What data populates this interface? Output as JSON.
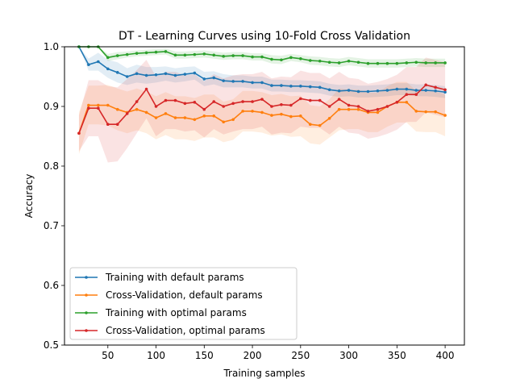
{
  "chart_data": {
    "type": "line",
    "title": "DT - Learning Curves using 10-Fold Cross Validation",
    "xlabel": "Training samples",
    "ylabel": "Accuracy",
    "xlim": [
      5,
      420
    ],
    "ylim": [
      0.5,
      1.0
    ],
    "xticks": [
      50,
      100,
      150,
      200,
      250,
      300,
      350,
      400
    ],
    "yticks": [
      0.5,
      0.6,
      0.7,
      0.8,
      0.9,
      1.0
    ],
    "grid": false,
    "legend_position": "lower-left",
    "x": [
      20,
      30,
      40,
      50,
      60,
      70,
      80,
      90,
      100,
      110,
      120,
      130,
      140,
      150,
      160,
      170,
      180,
      190,
      200,
      210,
      220,
      230,
      240,
      250,
      260,
      270,
      280,
      290,
      300,
      310,
      320,
      330,
      340,
      350,
      360,
      370,
      380,
      390,
      400
    ],
    "series": [
      {
        "name": "Training with default params",
        "color": "#1f77b4",
        "values": [
          1.0,
          0.97,
          0.975,
          0.963,
          0.957,
          0.95,
          0.955,
          0.952,
          0.953,
          0.955,
          0.952,
          0.954,
          0.956,
          0.946,
          0.948,
          0.943,
          0.942,
          0.942,
          0.94,
          0.94,
          0.935,
          0.935,
          0.934,
          0.934,
          0.933,
          0.932,
          0.928,
          0.926,
          0.927,
          0.925,
          0.925,
          0.926,
          0.927,
          0.929,
          0.929,
          0.927,
          0.927,
          0.926,
          0.924
        ],
        "band_low": [
          1.0,
          0.96,
          0.96,
          0.948,
          0.94,
          0.936,
          0.94,
          0.938,
          0.94,
          0.943,
          0.94,
          0.942,
          0.945,
          0.934,
          0.937,
          0.932,
          0.932,
          0.932,
          0.93,
          0.93,
          0.925,
          0.925,
          0.924,
          0.924,
          0.923,
          0.922,
          0.918,
          0.916,
          0.917,
          0.915,
          0.915,
          0.916,
          0.917,
          0.919,
          0.919,
          0.917,
          0.917,
          0.916,
          0.914
        ],
        "band_high": [
          1.0,
          0.98,
          0.99,
          0.978,
          0.974,
          0.964,
          0.97,
          0.966,
          0.966,
          0.967,
          0.964,
          0.966,
          0.967,
          0.958,
          0.959,
          0.954,
          0.952,
          0.952,
          0.95,
          0.95,
          0.945,
          0.945,
          0.944,
          0.944,
          0.943,
          0.942,
          0.938,
          0.936,
          0.937,
          0.935,
          0.935,
          0.936,
          0.937,
          0.939,
          0.939,
          0.937,
          0.937,
          0.936,
          0.934
        ]
      },
      {
        "name": "Cross-Validation, default params",
        "color": "#ff7f0e",
        "values": [
          0.855,
          0.902,
          0.902,
          0.902,
          0.895,
          0.89,
          0.895,
          0.89,
          0.881,
          0.888,
          0.881,
          0.881,
          0.878,
          0.884,
          0.884,
          0.874,
          0.878,
          0.892,
          0.892,
          0.89,
          0.885,
          0.887,
          0.883,
          0.884,
          0.87,
          0.868,
          0.88,
          0.895,
          0.895,
          0.895,
          0.89,
          0.89,
          0.9,
          0.907,
          0.907,
          0.892,
          0.891,
          0.891,
          0.885
        ],
        "band_low": [
          0.82,
          0.87,
          0.87,
          0.868,
          0.86,
          0.855,
          0.86,
          0.855,
          0.845,
          0.852,
          0.845,
          0.845,
          0.842,
          0.848,
          0.848,
          0.84,
          0.844,
          0.858,
          0.858,
          0.856,
          0.851,
          0.853,
          0.849,
          0.85,
          0.838,
          0.836,
          0.848,
          0.86,
          0.862,
          0.862,
          0.857,
          0.857,
          0.866,
          0.873,
          0.873,
          0.858,
          0.857,
          0.857,
          0.85
        ],
        "band_high": [
          0.89,
          0.935,
          0.935,
          0.936,
          0.93,
          0.925,
          0.93,
          0.925,
          0.917,
          0.924,
          0.917,
          0.917,
          0.914,
          0.92,
          0.92,
          0.908,
          0.912,
          0.926,
          0.926,
          0.924,
          0.919,
          0.921,
          0.917,
          0.918,
          0.902,
          0.9,
          0.912,
          0.93,
          0.928,
          0.928,
          0.923,
          0.923,
          0.934,
          0.941,
          0.941,
          0.926,
          0.925,
          0.925,
          0.92
        ]
      },
      {
        "name": "Training with optimal params",
        "color": "#2ca02c",
        "values": [
          1.0,
          1.0,
          1.0,
          0.982,
          0.985,
          0.987,
          0.989,
          0.99,
          0.991,
          0.992,
          0.986,
          0.986,
          0.987,
          0.988,
          0.986,
          0.984,
          0.985,
          0.985,
          0.983,
          0.983,
          0.979,
          0.978,
          0.982,
          0.98,
          0.977,
          0.976,
          0.974,
          0.973,
          0.976,
          0.974,
          0.972,
          0.972,
          0.972,
          0.972,
          0.973,
          0.974,
          0.973,
          0.973,
          0.973
        ],
        "band_low": [
          1.0,
          1.0,
          1.0,
          0.976,
          0.979,
          0.982,
          0.984,
          0.985,
          0.986,
          0.987,
          0.98,
          0.98,
          0.981,
          0.982,
          0.98,
          0.978,
          0.979,
          0.979,
          0.977,
          0.977,
          0.972,
          0.971,
          0.976,
          0.974,
          0.97,
          0.969,
          0.967,
          0.966,
          0.969,
          0.967,
          0.965,
          0.965,
          0.965,
          0.965,
          0.966,
          0.967,
          0.966,
          0.966,
          0.966
        ],
        "band_high": [
          1.0,
          1.0,
          1.0,
          0.988,
          0.991,
          0.992,
          0.994,
          0.995,
          0.996,
          0.997,
          0.992,
          0.992,
          0.993,
          0.994,
          0.992,
          0.99,
          0.991,
          0.991,
          0.989,
          0.989,
          0.986,
          0.985,
          0.988,
          0.986,
          0.984,
          0.983,
          0.981,
          0.98,
          0.983,
          0.981,
          0.979,
          0.979,
          0.979,
          0.979,
          0.98,
          0.981,
          0.98,
          0.98,
          0.98
        ]
      },
      {
        "name": "Cross-Validation, optimal params",
        "color": "#d62728",
        "values": [
          0.855,
          0.897,
          0.897,
          0.87,
          0.87,
          0.888,
          0.908,
          0.929,
          0.9,
          0.91,
          0.91,
          0.905,
          0.907,
          0.895,
          0.908,
          0.9,
          0.905,
          0.908,
          0.908,
          0.912,
          0.9,
          0.903,
          0.902,
          0.913,
          0.91,
          0.91,
          0.9,
          0.912,
          0.902,
          0.9,
          0.892,
          0.895,
          0.9,
          0.907,
          0.92,
          0.92,
          0.936,
          0.932,
          0.928
        ],
        "band_low": [
          0.825,
          0.85,
          0.85,
          0.806,
          0.808,
          0.83,
          0.855,
          0.88,
          0.85,
          0.862,
          0.862,
          0.858,
          0.86,
          0.848,
          0.862,
          0.853,
          0.858,
          0.862,
          0.862,
          0.866,
          0.853,
          0.856,
          0.855,
          0.866,
          0.864,
          0.864,
          0.853,
          0.866,
          0.856,
          0.854,
          0.846,
          0.849,
          0.854,
          0.861,
          0.874,
          0.874,
          0.89,
          0.886,
          0.882
        ],
        "band_high": [
          0.885,
          0.944,
          0.944,
          0.934,
          0.932,
          0.946,
          0.961,
          0.978,
          0.95,
          0.958,
          0.958,
          0.952,
          0.954,
          0.942,
          0.954,
          0.947,
          0.952,
          0.954,
          0.954,
          0.958,
          0.947,
          0.95,
          0.949,
          0.96,
          0.956,
          0.956,
          0.947,
          0.958,
          0.948,
          0.946,
          0.938,
          0.941,
          0.946,
          0.953,
          0.966,
          0.966,
          0.982,
          0.978,
          0.974
        ]
      }
    ]
  }
}
